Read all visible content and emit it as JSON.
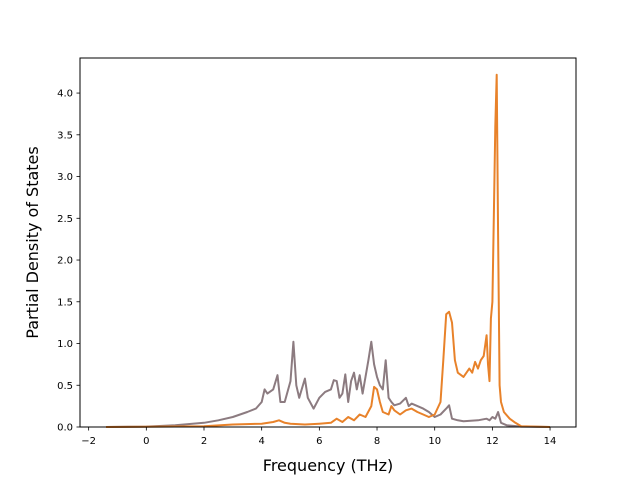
{
  "chart_data": {
    "type": "line",
    "title": "",
    "xlabel": "Frequency (THz)",
    "ylabel": "Partial Density of States",
    "xlim": [
      -2.3,
      14.9
    ],
    "ylim": [
      0,
      4.42
    ],
    "xticks": [
      -2,
      0,
      2,
      4,
      6,
      8,
      10,
      12,
      14
    ],
    "xtick_labels": [
      "−2",
      "0",
      "2",
      "4",
      "6",
      "8",
      "10",
      "12",
      "14"
    ],
    "yticks": [
      0,
      0.5,
      1.0,
      1.5,
      2.0,
      2.5,
      3.0,
      3.5,
      4.0
    ],
    "ytick_labels": [
      "0.0",
      "0.5",
      "1.0",
      "1.5",
      "2.0",
      "2.5",
      "3.0",
      "3.5",
      "4.0"
    ],
    "grid": false,
    "series": [
      {
        "color": "#8c7b80",
        "x": [
          -1.4,
          0,
          1,
          2,
          2.5,
          3,
          3.5,
          3.8,
          4.0,
          4.1,
          4.2,
          4.4,
          4.55,
          4.65,
          4.8,
          5.0,
          5.1,
          5.2,
          5.3,
          5.5,
          5.6,
          5.8,
          6.0,
          6.2,
          6.4,
          6.5,
          6.6,
          6.7,
          6.8,
          6.9,
          7.0,
          7.1,
          7.2,
          7.3,
          7.4,
          7.5,
          7.6,
          7.7,
          7.8,
          7.9,
          8.0,
          8.1,
          8.2,
          8.3,
          8.4,
          8.5,
          8.6,
          8.8,
          9.0,
          9.1,
          9.2,
          9.4,
          9.6,
          9.8,
          10.0,
          10.2,
          10.4,
          10.5,
          10.6,
          10.8,
          11.0,
          11.5,
          11.8,
          11.9,
          12.0,
          12.1,
          12.2,
          12.3,
          12.5,
          13.0,
          14.0
        ],
        "y": [
          0,
          0.005,
          0.02,
          0.05,
          0.08,
          0.12,
          0.18,
          0.22,
          0.3,
          0.45,
          0.4,
          0.45,
          0.62,
          0.3,
          0.3,
          0.55,
          1.02,
          0.5,
          0.35,
          0.58,
          0.35,
          0.22,
          0.35,
          0.42,
          0.45,
          0.56,
          0.55,
          0.35,
          0.4,
          0.63,
          0.3,
          0.55,
          0.65,
          0.45,
          0.62,
          0.4,
          0.6,
          0.8,
          1.02,
          0.75,
          0.6,
          0.5,
          0.45,
          0.8,
          0.35,
          0.3,
          0.26,
          0.28,
          0.35,
          0.25,
          0.28,
          0.25,
          0.22,
          0.18,
          0.12,
          0.15,
          0.22,
          0.26,
          0.1,
          0.08,
          0.07,
          0.08,
          0.1,
          0.08,
          0.12,
          0.1,
          0.18,
          0.05,
          0.02,
          0.005,
          0
        ]
      },
      {
        "color": "#e8822a",
        "x": [
          -1.4,
          0,
          2,
          3,
          4,
          4.4,
          4.6,
          4.8,
          5.0,
          5.5,
          6.0,
          6.4,
          6.6,
          6.8,
          7.0,
          7.2,
          7.4,
          7.6,
          7.8,
          7.9,
          8.0,
          8.1,
          8.2,
          8.4,
          8.5,
          8.6,
          8.8,
          9.0,
          9.2,
          9.4,
          9.6,
          9.8,
          10.0,
          10.2,
          10.3,
          10.4,
          10.5,
          10.6,
          10.7,
          10.8,
          11.0,
          11.2,
          11.3,
          11.4,
          11.5,
          11.6,
          11.7,
          11.8,
          11.85,
          11.9,
          11.95,
          12.0,
          12.05,
          12.1,
          12.15,
          12.2,
          12.25,
          12.3,
          12.4,
          12.6,
          12.8,
          13.0,
          14.0
        ],
        "y": [
          0,
          0.002,
          0.01,
          0.03,
          0.04,
          0.06,
          0.08,
          0.05,
          0.04,
          0.03,
          0.04,
          0.05,
          0.1,
          0.06,
          0.12,
          0.08,
          0.15,
          0.12,
          0.25,
          0.48,
          0.45,
          0.3,
          0.18,
          0.15,
          0.25,
          0.2,
          0.15,
          0.2,
          0.22,
          0.18,
          0.15,
          0.12,
          0.15,
          0.3,
          0.8,
          1.35,
          1.38,
          1.25,
          0.8,
          0.65,
          0.6,
          0.7,
          0.65,
          0.78,
          0.7,
          0.8,
          0.85,
          1.1,
          0.75,
          0.55,
          1.3,
          1.5,
          2.5,
          3.6,
          4.22,
          2.3,
          0.5,
          0.3,
          0.18,
          0.1,
          0.05,
          0.01,
          0
        ]
      }
    ]
  }
}
